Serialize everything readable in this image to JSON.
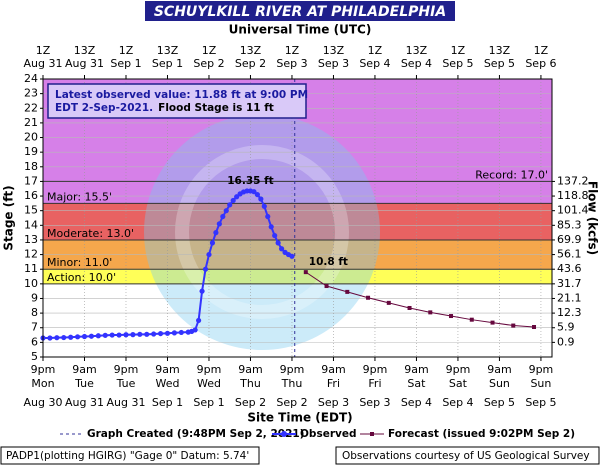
{
  "chart_data": {
    "type": "line",
    "title": "SCHUYLKILL RIVER AT PHILADELPHIA",
    "x2_axis_label": "Universal Time (UTC)",
    "x_axis_label": "Site Time (EDT)",
    "y_axis_label": "Stage (ft)",
    "y2_axis_label": "Flow (kcfs)",
    "xlim": [
      0,
      147.2
    ],
    "ylim": [
      5,
      24
    ],
    "yticks": [
      5,
      6,
      7,
      8,
      9,
      10,
      11,
      12,
      13,
      14,
      15,
      16,
      17,
      18,
      19,
      20,
      21,
      22,
      23,
      24
    ],
    "grid": true,
    "xticks": [
      {
        "value": 0,
        "label": "9pm",
        "weekday": "Mon",
        "date": "Aug 30"
      },
      {
        "value": 12,
        "label": "9am",
        "weekday": "Tue",
        "date": "Aug 31"
      },
      {
        "value": 24,
        "label": "9pm",
        "weekday": "Tue",
        "date": "Aug 31"
      },
      {
        "value": 36,
        "label": "9am",
        "weekday": "Wed",
        "date": "Sep 1"
      },
      {
        "value": 48,
        "label": "9pm",
        "weekday": "Wed",
        "date": "Sep 1"
      },
      {
        "value": 60,
        "label": "9am",
        "weekday": "Thu",
        "date": "Sep 2"
      },
      {
        "value": 72,
        "label": "9pm",
        "weekday": "Thu",
        "date": "Sep 2"
      },
      {
        "value": 84,
        "label": "9am",
        "weekday": "Fri",
        "date": "Sep 3"
      },
      {
        "value": 96,
        "label": "9pm",
        "weekday": "Fri",
        "date": "Sep 3"
      },
      {
        "value": 108,
        "label": "9am",
        "weekday": "Sat",
        "date": "Sep 4"
      },
      {
        "value": 120,
        "label": "9pm",
        "weekday": "Sat",
        "date": "Sep 4"
      },
      {
        "value": 132,
        "label": "9am",
        "weekday": "Sun",
        "date": "Sep 5"
      },
      {
        "value": 144,
        "label": "9pm",
        "weekday": "Sun",
        "date": "Sep 5"
      }
    ],
    "x2ticks": [
      {
        "value": 0,
        "label": "1Z",
        "date": "Aug 31"
      },
      {
        "value": 12,
        "label": "13Z",
        "date": "Aug 31"
      },
      {
        "value": 24,
        "label": "1Z",
        "date": "Sep 1"
      },
      {
        "value": 36,
        "label": "13Z",
        "date": "Sep 1"
      },
      {
        "value": 48,
        "label": "1Z",
        "date": "Sep 2"
      },
      {
        "value": 60,
        "label": "13Z",
        "date": "Sep 2"
      },
      {
        "value": 72,
        "label": "1Z",
        "date": "Sep 3"
      },
      {
        "value": 84,
        "label": "13Z",
        "date": "Sep 3"
      },
      {
        "value": 96,
        "label": "1Z",
        "date": "Sep 4"
      },
      {
        "value": 108,
        "label": "13Z",
        "date": "Sep 4"
      },
      {
        "value": 120,
        "label": "1Z",
        "date": "Sep 5"
      },
      {
        "value": 132,
        "label": "13Z",
        "date": "Sep 5"
      },
      {
        "value": 144,
        "label": "1Z",
        "date": "Sep 6"
      }
    ],
    "flow_ticks": [
      {
        "stage": 17,
        "flow": 137.2
      },
      {
        "stage": 16,
        "flow": 118.8
      },
      {
        "stage": 15,
        "flow": 101.4
      },
      {
        "stage": 14,
        "flow": 85.3
      },
      {
        "stage": 13,
        "flow": 69.9
      },
      {
        "stage": 12,
        "flow": 56.1
      },
      {
        "stage": 11,
        "flow": 43.6
      },
      {
        "stage": 10,
        "flow": 31.7
      },
      {
        "stage": 9,
        "flow": 21.1
      },
      {
        "stage": 8,
        "flow": 12.3
      },
      {
        "stage": 7,
        "flow": 5.9
      },
      {
        "stage": 6,
        "flow": 0.9
      }
    ],
    "bands": [
      {
        "from": 15.5,
        "to": 24,
        "color": "#d680e8"
      },
      {
        "from": 13,
        "to": 15.5,
        "color": "#e86262"
      },
      {
        "from": 11,
        "to": 13,
        "color": "#f5a74c"
      },
      {
        "from": 10,
        "to": 11,
        "color": "#ffff58"
      }
    ],
    "record": {
      "name": "Record: 17.0'",
      "value": 17
    },
    "stages": [
      {
        "name": "Major: 15.5'",
        "value": 15.5
      },
      {
        "name": "Moderate: 13.0'",
        "value": 13
      },
      {
        "name": "Minor: 11.0'",
        "value": 11
      },
      {
        "name": "Action: 10.0'",
        "value": 10
      }
    ],
    "annotation": [
      "Latest observed value: 11.88 ft at 9:00 PM",
      "EDT 2-Sep-2021.",
      "Flood Stage is 11 ft"
    ],
    "created": {
      "name": "Graph Created (9:48PM Sep 2, 2021)",
      "x": 72.8
    },
    "series": [
      {
        "name": "Observed",
        "color": "#3333ff",
        "x": [
          0,
          2,
          4,
          6,
          8,
          10,
          12,
          14,
          16,
          18,
          20,
          22,
          24,
          26,
          28,
          30,
          32,
          34,
          36,
          38,
          40,
          42,
          43,
          44,
          45,
          46,
          47,
          48,
          49,
          50,
          51,
          52,
          53,
          54,
          55,
          56,
          57,
          58,
          59,
          60,
          61,
          62,
          63,
          64,
          65,
          66,
          67,
          68,
          69,
          70,
          71,
          72
        ],
        "values": [
          6.3,
          6.3,
          6.32,
          6.33,
          6.35,
          6.38,
          6.4,
          6.42,
          6.45,
          6.48,
          6.5,
          6.5,
          6.52,
          6.53,
          6.55,
          6.55,
          6.57,
          6.6,
          6.62,
          6.65,
          6.68,
          6.7,
          6.75,
          6.85,
          7.5,
          9.5,
          11.0,
          12.0,
          12.8,
          13.5,
          14.1,
          14.6,
          15.0,
          15.4,
          15.7,
          15.95,
          16.15,
          16.28,
          16.35,
          16.35,
          16.3,
          16.1,
          15.8,
          15.3,
          14.6,
          13.9,
          13.3,
          12.8,
          12.4,
          12.15,
          12.0,
          11.88
        ],
        "value_labels": [
          null,
          null,
          null,
          null,
          null,
          null,
          null,
          null,
          null,
          null,
          null,
          null,
          null,
          null,
          null,
          null,
          null,
          null,
          null,
          null,
          null,
          null,
          null,
          null,
          null,
          null,
          null,
          null,
          null,
          null,
          null,
          null,
          null,
          null,
          null,
          null,
          null,
          null,
          null,
          "16.35 ft",
          null,
          null,
          null,
          null,
          null,
          null,
          null,
          null,
          null,
          null,
          null,
          null
        ]
      },
      {
        "name": "Forecast (issued 9:02PM Sep 2)",
        "color": "#66083e",
        "x": [
          76,
          82,
          88,
          94,
          100,
          106,
          112,
          118,
          124,
          130,
          136,
          142
        ],
        "values": [
          10.8,
          9.85,
          9.45,
          9.05,
          8.7,
          8.35,
          8.05,
          7.8,
          7.55,
          7.35,
          7.15,
          7.05
        ],
        "value_labels": [
          "10.8 ft",
          null,
          null,
          null,
          null,
          null,
          null,
          null,
          null,
          null,
          null,
          null
        ]
      }
    ],
    "footer_left": "PADP1(plotting HGIRG) \"Gage 0\" Datum: 5.74'",
    "footer_right": "Observations courtesy of US Geological Survey"
  }
}
